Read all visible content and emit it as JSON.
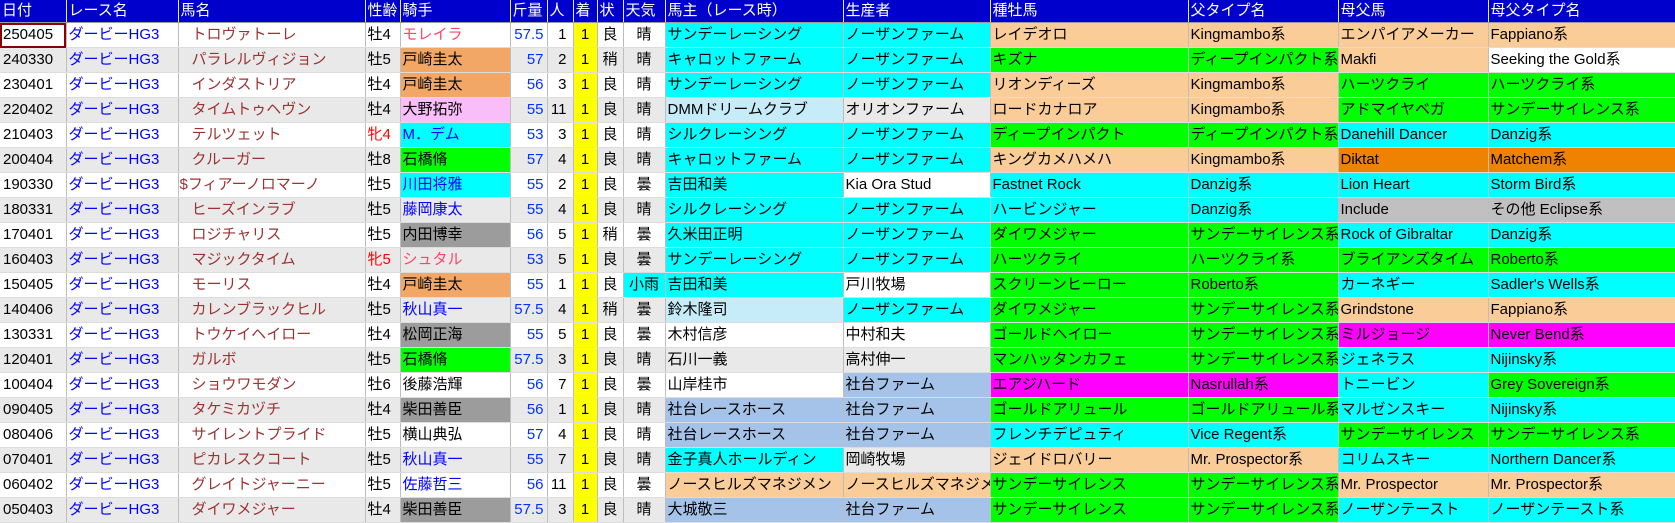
{
  "header": {
    "columns": [
      "日付",
      "レース名",
      "馬名",
      "性齢",
      "騎手",
      "斤量",
      "人",
      "着",
      "状",
      "天気",
      "馬主（レース時）",
      "生産者",
      "種牡馬",
      "父タイプ名",
      "母父馬",
      "母父タイプ名"
    ]
  },
  "selection": {
    "row_index": 0,
    "column_key": "date"
  },
  "colors": {
    "header_blue": "#0000CC",
    "row_alt": "#E9E9E9",
    "cyan": "#00FFFF",
    "light_cyan": "#C5ECF8",
    "green": "#00FF00",
    "peach": "#FACC98",
    "orange": "#EF8200",
    "magenta": "#FF00FF",
    "light_blue": "#A5C3E8",
    "gray": "#C0C0C0",
    "jockey_gray": "#9C9C9C",
    "jockey_orange": "#F3A767",
    "jockey_violet": "#F9BEF9",
    "yellow": "#FFFF00",
    "race_blue": "#0000FF",
    "link_blue": "#0000FF",
    "weight_blue": "#0033FF",
    "horse_maroon": "#9C3232",
    "female_red": "#FF0000",
    "pink_text": "#FF4466",
    "selection_border": "#8B0000"
  },
  "rows": [
    {
      "date": "250405",
      "race": "ダービーHG3",
      "horse": "トロヴァトーレ",
      "sex": "牡4",
      "sexRed": false,
      "jockey": "モレイラ",
      "jBg": null,
      "jFg": "pink",
      "wt": "57.5",
      "pop": "1",
      "fin": "1",
      "cond": "良",
      "wx": "晴",
      "wxBg": null,
      "owner": "サンデーレーシング",
      "ownerBg": "cyan",
      "breeder": "ノーザンファーム",
      "breederBg": "cyan",
      "sire": "レイデオロ",
      "sireBg": "peach",
      "ftype": "Kingmambo系",
      "ftypeBg": "peach",
      "dsire": "エンパイアメーカー",
      "dsireBg": "peach",
      "dtype": "Fappiano系",
      "dtypeBg": "peach"
    },
    {
      "date": "240330",
      "race": "ダービーHG3",
      "horse": "パラレルヴィジョン",
      "sex": "牡5",
      "sexRed": false,
      "jockey": "戸崎圭太",
      "jBg": "jorange",
      "jFg": null,
      "wt": "57",
      "pop": "2",
      "fin": "1",
      "cond": "稍",
      "wx": "晴",
      "wxBg": null,
      "owner": "キャロットファーム",
      "ownerBg": "cyan",
      "breeder": "ノーザンファーム",
      "breederBg": "cyan",
      "sire": "キズナ",
      "sireBg": "green",
      "ftype": "ディープインパクト系",
      "ftypeBg": "green",
      "dsire": "Makfi",
      "dsireBg": "peach",
      "dtype": "Seeking the Gold系",
      "dtypeBg": "white"
    },
    {
      "date": "230401",
      "race": "ダービーHG3",
      "horse": "インダストリア",
      "sex": "牡4",
      "sexRed": false,
      "jockey": "戸崎圭太",
      "jBg": "jorange",
      "jFg": null,
      "wt": "56",
      "pop": "3",
      "fin": "1",
      "cond": "良",
      "wx": "晴",
      "wxBg": null,
      "owner": "サンデーレーシング",
      "ownerBg": "cyan",
      "breeder": "ノーザンファーム",
      "breederBg": "cyan",
      "sire": "リオンディーズ",
      "sireBg": "peach",
      "ftype": "Kingmambo系",
      "ftypeBg": "peach",
      "dsire": "ハーツクライ",
      "dsireBg": "green",
      "dtype": "ハーツクライ系",
      "dtypeBg": "green"
    },
    {
      "date": "220402",
      "race": "ダービーHG3",
      "horse": "タイムトゥヘヴン",
      "sex": "牡4",
      "sexRed": false,
      "jockey": "大野拓弥",
      "jBg": "jviolet",
      "jFg": null,
      "wt": "55",
      "pop": "11",
      "fin": "1",
      "cond": "良",
      "wx": "晴",
      "wxBg": null,
      "owner": "DMMドリームクラブ",
      "ownerBg": "lcyan",
      "breeder": "オリオンファーム",
      "breederBg": null,
      "sire": "ロードカナロア",
      "sireBg": "peach",
      "ftype": "Kingmambo系",
      "ftypeBg": "peach",
      "dsire": "アドマイヤベガ",
      "dsireBg": "green",
      "dtype": "サンデーサイレンス系",
      "dtypeBg": "green"
    },
    {
      "date": "210403",
      "race": "ダービーHG3",
      "horse": "テルツェット",
      "sex": "牝4",
      "sexRed": true,
      "jockey": "M．デム",
      "jBg": "cyan",
      "jFg": "blue",
      "wt": "53",
      "pop": "3",
      "fin": "1",
      "cond": "良",
      "wx": "晴",
      "wxBg": null,
      "owner": "シルクレーシング",
      "ownerBg": "cyan",
      "breeder": "ノーザンファーム",
      "breederBg": "cyan",
      "sire": "ディープインパクト",
      "sireBg": "green",
      "ftype": "ディープインパクト系",
      "ftypeBg": "green",
      "dsire": "Danehill Dancer",
      "dsireBg": "cyan",
      "dtype": "Danzig系",
      "dtypeBg": "cyan"
    },
    {
      "date": "200404",
      "race": "ダービーHG3",
      "horse": "クルーガー",
      "sex": "牡8",
      "sexRed": false,
      "jockey": "石橋脩",
      "jBg": "green",
      "jFg": null,
      "wt": "57",
      "pop": "4",
      "fin": "1",
      "cond": "良",
      "wx": "晴",
      "wxBg": null,
      "owner": "キャロットファーム",
      "ownerBg": "cyan",
      "breeder": "ノーザンファーム",
      "breederBg": "cyan",
      "sire": "キングカメハメハ",
      "sireBg": "peach",
      "ftype": "Kingmambo系",
      "ftypeBg": "peach",
      "dsire": "Diktat",
      "dsireBg": "orange",
      "dtype": "Matchem系",
      "dtypeBg": "orange"
    },
    {
      "date": "190330",
      "race": "ダービーHG3",
      "horse": "$フィアーノロマーノ",
      "sex": "牡5",
      "sexRed": false,
      "jockey": "川田将雅",
      "jBg": "cyan",
      "jFg": "blue",
      "wt": "55",
      "pop": "2",
      "fin": "1",
      "cond": "良",
      "wx": "曇",
      "wxBg": null,
      "owner": "吉田和美",
      "ownerBg": "cyan",
      "breeder": "Kia Ora Stud",
      "breederBg": "white",
      "sire": "Fastnet Rock",
      "sireBg": "cyan",
      "ftype": "Danzig系",
      "ftypeBg": "cyan",
      "dsire": "Lion Heart",
      "dsireBg": "cyan",
      "dtype": "Storm Bird系",
      "dtypeBg": "cyan"
    },
    {
      "date": "180331",
      "race": "ダービーHG3",
      "horse": "ヒーズインラブ",
      "sex": "牡5",
      "sexRed": false,
      "jockey": "藤岡康太",
      "jBg": null,
      "jFg": "blue",
      "wt": "55",
      "pop": "4",
      "fin": "1",
      "cond": "良",
      "wx": "晴",
      "wxBg": null,
      "owner": "シルクレーシング",
      "ownerBg": "cyan",
      "breeder": "ノーザンファーム",
      "breederBg": "cyan",
      "sire": "ハービンジャー",
      "sireBg": "cyan",
      "ftype": "Danzig系",
      "ftypeBg": "cyan",
      "dsire": "Include",
      "dsireBg": "gray",
      "dtype": "その他 Eclipse系",
      "dtypeBg": "gray"
    },
    {
      "date": "170401",
      "race": "ダービーHG3",
      "horse": "ロジチャリス",
      "sex": "牡5",
      "sexRed": false,
      "jockey": "内田博幸",
      "jBg": "jgray",
      "jFg": null,
      "wt": "56",
      "pop": "5",
      "fin": "1",
      "cond": "稍",
      "wx": "曇",
      "wxBg": null,
      "owner": "久米田正明",
      "ownerBg": "cyan",
      "breeder": "ノーザンファーム",
      "breederBg": "cyan",
      "sire": "ダイワメジャー",
      "sireBg": "green",
      "ftype": "サンデーサイレンス系",
      "ftypeBg": "green",
      "dsire": "Rock of Gibraltar",
      "dsireBg": "cyan",
      "dtype": "Danzig系",
      "dtypeBg": "cyan"
    },
    {
      "date": "160403",
      "race": "ダービーHG3",
      "horse": "マジックタイム",
      "sex": "牝5",
      "sexRed": true,
      "jockey": "シュタル",
      "jBg": null,
      "jFg": "pink",
      "wt": "53",
      "pop": "5",
      "fin": "1",
      "cond": "良",
      "wx": "曇",
      "wxBg": null,
      "owner": "サンデーレーシング",
      "ownerBg": "cyan",
      "breeder": "ノーザンファーム",
      "breederBg": "cyan",
      "sire": "ハーツクライ",
      "sireBg": "green",
      "ftype": "ハーツクライ系",
      "ftypeBg": "green",
      "dsire": "ブライアンズタイム",
      "dsireBg": "green",
      "dtype": "Roberto系",
      "dtypeBg": "green"
    },
    {
      "date": "150405",
      "race": "ダービーHG3",
      "horse": "モーリス",
      "sex": "牡4",
      "sexRed": false,
      "jockey": "戸崎圭太",
      "jBg": "jorange",
      "jFg": null,
      "wt": "55",
      "pop": "1",
      "fin": "1",
      "cond": "良",
      "wx": "小雨",
      "wxBg": "cyan",
      "owner": "吉田和美",
      "ownerBg": "cyan",
      "breeder": "戸川牧場",
      "breederBg": null,
      "sire": "スクリーンヒーロー",
      "sireBg": "green",
      "ftype": "Roberto系",
      "ftypeBg": "green",
      "dsire": "カーネギー",
      "dsireBg": "cyan",
      "dtype": "Sadler's Wells系",
      "dtypeBg": "cyan"
    },
    {
      "date": "140406",
      "race": "ダービーHG3",
      "horse": "カレンブラックヒル",
      "sex": "牡5",
      "sexRed": false,
      "jockey": "秋山真一",
      "jBg": null,
      "jFg": "blue",
      "wt": "57.5",
      "pop": "4",
      "fin": "1",
      "cond": "稍",
      "wx": "曇",
      "wxBg": null,
      "owner": "鈴木隆司",
      "ownerBg": "lcyan",
      "breeder": "ノーザンファーム",
      "breederBg": "cyan",
      "sire": "ダイワメジャー",
      "sireBg": "green",
      "ftype": "サンデーサイレンス系",
      "ftypeBg": "green",
      "dsire": "Grindstone",
      "dsireBg": "peach",
      "dtype": "Fappiano系",
      "dtypeBg": "peach"
    },
    {
      "date": "130331",
      "race": "ダービーHG3",
      "horse": "トウケイヘイロー",
      "sex": "牡4",
      "sexRed": false,
      "jockey": "松岡正海",
      "jBg": "jgray",
      "jFg": null,
      "wt": "55",
      "pop": "5",
      "fin": "1",
      "cond": "良",
      "wx": "曇",
      "wxBg": null,
      "owner": "木村信彦",
      "ownerBg": null,
      "breeder": "中村和夫",
      "breederBg": null,
      "sire": "ゴールドヘイロー",
      "sireBg": "green",
      "ftype": "サンデーサイレンス系",
      "ftypeBg": "green",
      "dsire": "ミルジョージ",
      "dsireBg": "magenta",
      "dtype": "Never Bend系",
      "dtypeBg": "magenta"
    },
    {
      "date": "120401",
      "race": "ダービーHG3",
      "horse": "ガルボ",
      "sex": "牡5",
      "sexRed": false,
      "jockey": "石橋脩",
      "jBg": "green",
      "jFg": null,
      "wt": "57.5",
      "pop": "3",
      "fin": "1",
      "cond": "良",
      "wx": "晴",
      "wxBg": null,
      "owner": "石川一義",
      "ownerBg": null,
      "breeder": "高村伸一",
      "breederBg": null,
      "sire": "マンハッタンカフェ",
      "sireBg": "green",
      "ftype": "サンデーサイレンス系",
      "ftypeBg": "green",
      "dsire": "ジェネラス",
      "dsireBg": "cyan",
      "dtype": "Nijinsky系",
      "dtypeBg": "cyan"
    },
    {
      "date": "100404",
      "race": "ダービーHG3",
      "horse": "ショウワモダン",
      "sex": "牡6",
      "sexRed": false,
      "jockey": "後藤浩輝",
      "jBg": null,
      "jFg": null,
      "wt": "56",
      "pop": "7",
      "fin": "1",
      "cond": "良",
      "wx": "曇",
      "wxBg": null,
      "owner": "山岸桂市",
      "ownerBg": null,
      "breeder": "社台ファーム",
      "breederBg": "lblue",
      "sire": "エアジハード",
      "sireBg": "magenta",
      "ftype": "Nasrullah系",
      "ftypeBg": "magenta",
      "dsire": "トニービン",
      "dsireBg": "cyan",
      "dtype": "Grey Sovereign系",
      "dtypeBg": "green"
    },
    {
      "date": "090405",
      "race": "ダービーHG3",
      "horse": "タケミカヅチ",
      "sex": "牡4",
      "sexRed": false,
      "jockey": "柴田善臣",
      "jBg": "jgray",
      "jFg": null,
      "wt": "56",
      "pop": "1",
      "fin": "1",
      "cond": "良",
      "wx": "晴",
      "wxBg": null,
      "owner": "社台レースホース",
      "ownerBg": "lblue",
      "breeder": "社台ファーム",
      "breederBg": "lblue",
      "sire": "ゴールドアリュール",
      "sireBg": "green",
      "ftype": "ゴールドアリュール系",
      "ftypeBg": "green",
      "dsire": "マルゼンスキー",
      "dsireBg": "cyan",
      "dtype": "Nijinsky系",
      "dtypeBg": "cyan"
    },
    {
      "date": "080406",
      "race": "ダービーHG3",
      "horse": "サイレントプライド",
      "sex": "牡5",
      "sexRed": false,
      "jockey": "横山典弘",
      "jBg": null,
      "jFg": null,
      "wt": "57",
      "pop": "4",
      "fin": "1",
      "cond": "良",
      "wx": "晴",
      "wxBg": null,
      "owner": "社台レースホース",
      "ownerBg": "lblue",
      "breeder": "社台ファーム",
      "breederBg": "lblue",
      "sire": "フレンチデピュティ",
      "sireBg": "cyan",
      "ftype": "Vice Regent系",
      "ftypeBg": "cyan",
      "dsire": "サンデーサイレンス",
      "dsireBg": "green",
      "dtype": "サンデーサイレンス系",
      "dtypeBg": "green"
    },
    {
      "date": "070401",
      "race": "ダービーHG3",
      "horse": "ピカレスクコート",
      "sex": "牡5",
      "sexRed": false,
      "jockey": "秋山真一",
      "jBg": null,
      "jFg": "blue",
      "wt": "55",
      "pop": "7",
      "fin": "1",
      "cond": "良",
      "wx": "晴",
      "wxBg": null,
      "owner": "金子真人ホールディン",
      "ownerBg": "cyan",
      "breeder": "岡崎牧場",
      "breederBg": null,
      "sire": "ジェイドロバリー",
      "sireBg": "peach",
      "ftype": "Mr. Prospector系",
      "ftypeBg": "peach",
      "dsire": "コリムスキー",
      "dsireBg": "cyan",
      "dtype": "Northern Dancer系",
      "dtypeBg": "cyan"
    },
    {
      "date": "060402",
      "race": "ダービーHG3",
      "horse": "グレイトジャーニー",
      "sex": "牡5",
      "sexRed": false,
      "jockey": "佐藤哲三",
      "jBg": null,
      "jFg": "blue",
      "wt": "56",
      "pop": "11",
      "fin": "1",
      "cond": "良",
      "wx": "曇",
      "wxBg": null,
      "owner": "ノースヒルズマネジメン",
      "ownerBg": "peach",
      "breeder": "ノースヒルズマネジメン",
      "breederBg": "peach",
      "sire": "サンデーサイレンス",
      "sireBg": "green",
      "ftype": "サンデーサイレンス系",
      "ftypeBg": "green",
      "dsire": "Mr. Prospector",
      "dsireBg": "peach",
      "dtype": "Mr. Prospector系",
      "dtypeBg": "peach"
    },
    {
      "date": "050403",
      "race": "ダービーHG3",
      "horse": "ダイワメジャー",
      "sex": "牡4",
      "sexRed": false,
      "jockey": "柴田善臣",
      "jBg": "jgray",
      "jFg": null,
      "wt": "57.5",
      "pop": "3",
      "fin": "1",
      "cond": "良",
      "wx": "晴",
      "wxBg": null,
      "owner": "大城敬三",
      "ownerBg": "lblue",
      "breeder": "社台ファーム",
      "breederBg": "lblue",
      "sire": "サンデーサイレンス",
      "sireBg": "green",
      "ftype": "サンデーサイレンス系",
      "ftypeBg": "green",
      "dsire": "ノーザンテースト",
      "dsireBg": "cyan",
      "dtype": "ノーザンテースト系",
      "dtypeBg": "cyan"
    }
  ]
}
